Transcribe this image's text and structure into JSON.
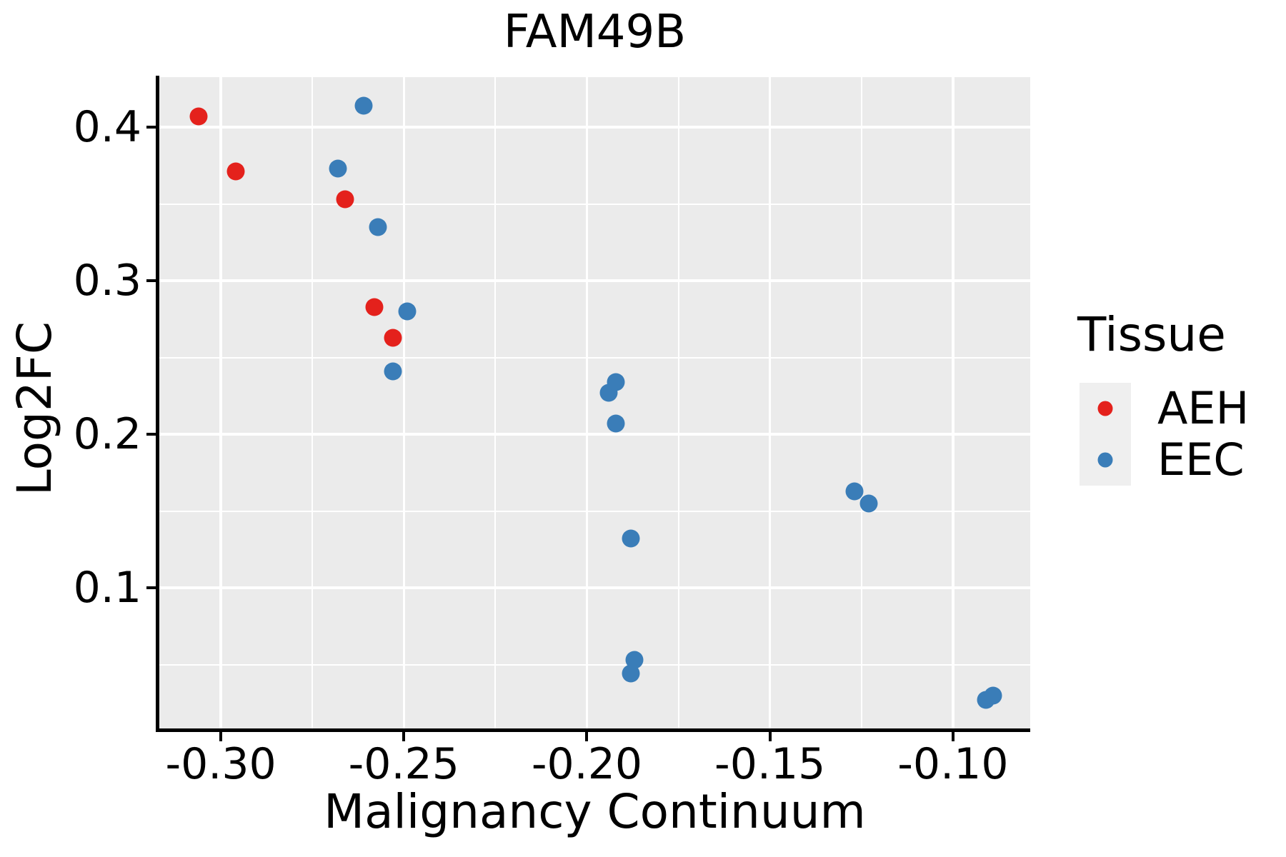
{
  "chart_data": {
    "type": "scatter",
    "title": "FAM49B",
    "xlabel": "Malignancy Continuum",
    "ylabel": "Log2FC",
    "xlim": [
      -0.3168,
      -0.0789
    ],
    "ylim": [
      0.0084,
      0.4326
    ],
    "x_ticks": {
      "values": [
        -0.3,
        -0.25,
        -0.2,
        -0.15,
        -0.1
      ],
      "labels": [
        "-0.30",
        "-0.25",
        "-0.20",
        "-0.15",
        "-0.10"
      ]
    },
    "y_ticks": {
      "values": [
        0.1,
        0.2,
        0.3,
        0.4
      ],
      "labels": [
        "0.1",
        "0.2",
        "0.3",
        "0.4"
      ]
    },
    "grid": "major+minor gridlines, white on gray panel",
    "legend": {
      "title": "Tissue",
      "position": "right"
    },
    "series": [
      {
        "name": "AEH",
        "color": "#e4211c",
        "points": [
          [
            -0.306,
            0.407
          ],
          [
            -0.296,
            0.371
          ],
          [
            -0.266,
            0.353
          ],
          [
            -0.258,
            0.283
          ],
          [
            -0.253,
            0.263
          ]
        ]
      },
      {
        "name": "EEC",
        "color": "#3a7db8",
        "points": [
          [
            -0.268,
            0.373
          ],
          [
            -0.261,
            0.414
          ],
          [
            -0.257,
            0.335
          ],
          [
            -0.253,
            0.241
          ],
          [
            -0.249,
            0.28
          ],
          [
            -0.194,
            0.227
          ],
          [
            -0.192,
            0.234
          ],
          [
            -0.192,
            0.207
          ],
          [
            -0.188,
            0.132
          ],
          [
            -0.188,
            0.044
          ],
          [
            -0.187,
            0.053
          ],
          [
            -0.127,
            0.163
          ],
          [
            -0.123,
            0.155
          ],
          [
            -0.091,
            0.027
          ],
          [
            -0.089,
            0.03
          ]
        ]
      }
    ],
    "colors": {
      "panel_bg": "#ebebeb",
      "grid": "#ffffff",
      "legend_key_bg": "#efefef",
      "spine": "#000000",
      "text": "#000000"
    }
  }
}
